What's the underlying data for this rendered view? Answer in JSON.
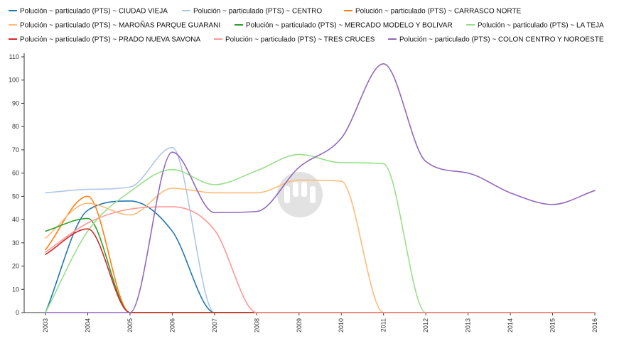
{
  "chart_data": {
    "type": "line",
    "title": "",
    "xlabel": "",
    "ylabel": "",
    "x": [
      "2003",
      "2004",
      "2005",
      "2006",
      "2007",
      "2008",
      "2009",
      "2010",
      "2011",
      "2012",
      "2013",
      "2014",
      "2015",
      "2016"
    ],
    "ylim": [
      0,
      110
    ],
    "yticks": [
      0,
      10,
      20,
      30,
      40,
      50,
      60,
      70,
      80,
      90,
      100,
      110
    ],
    "grid": false,
    "legend_position": "top",
    "watermark_icon": "logo-watermark-icon",
    "series": [
      {
        "name": "Polución ~ particulado (PTS) ~ CIUDAD VIEJA",
        "color": "#1f77b4",
        "values": [
          0,
          44,
          48,
          35,
          0,
          0,
          0,
          0,
          0,
          0,
          0,
          0,
          0,
          0
        ]
      },
      {
        "name": "Polución ~ particulado (PTS) ~ CENTRO",
        "color": "#aec7e8",
        "values": [
          51.5,
          53,
          54,
          71,
          0,
          0,
          0,
          0,
          0,
          0,
          0,
          0,
          0,
          0
        ]
      },
      {
        "name": "Polución ~ particulado (PTS) ~ CARRASCO NORTE",
        "color": "#ff7f0e",
        "values": [
          27,
          50,
          0,
          0,
          0,
          0,
          0,
          0,
          0,
          0,
          0,
          0,
          0,
          0
        ]
      },
      {
        "name": "Polución ~ particulado (PTS) ~ MAROÑAS PARQUE GUARANI",
        "color": "#ffbb78",
        "values": [
          32,
          47,
          42,
          53.5,
          51.5,
          51.5,
          57,
          56.5,
          0,
          0,
          0,
          0,
          0,
          0
        ]
      },
      {
        "name": "Polución ~ particulado (PTS) ~ MERCADO MODELO Y BOLIVAR",
        "color": "#2ca02c",
        "values": [
          35,
          40.5,
          0,
          0,
          0,
          0,
          0,
          0,
          0,
          0,
          0,
          0,
          0,
          0
        ]
      },
      {
        "name": "Polución ~ particulado (PTS) ~ LA TEJA",
        "color": "#98df8a",
        "values": [
          0,
          35,
          52,
          61.5,
          55,
          61,
          68,
          64.5,
          64,
          0,
          0,
          0,
          0,
          0
        ]
      },
      {
        "name": "Polución ~ particulado (PTS) ~ PRADO NUEVA SAVONA",
        "color": "#d62728",
        "values": [
          25,
          36,
          0,
          0,
          0,
          0,
          0,
          0,
          0,
          0,
          0,
          0,
          0,
          0
        ]
      },
      {
        "name": "Polución ~ particulado (PTS) ~ TRES CRUCES",
        "color": "#ff9896",
        "values": [
          26,
          38.5,
          44.5,
          45.5,
          35.5,
          0,
          0,
          0,
          0,
          0,
          0,
          0,
          0,
          0
        ]
      },
      {
        "name": "Polución ~ particulado (PTS) ~ COLON CENTRO Y NOROESTE",
        "color": "#9467bd",
        "values": [
          0,
          0,
          0,
          69,
          43,
          43.5,
          62.5,
          75,
          107,
          65,
          60,
          51.5,
          46.5,
          52.5
        ]
      }
    ]
  }
}
